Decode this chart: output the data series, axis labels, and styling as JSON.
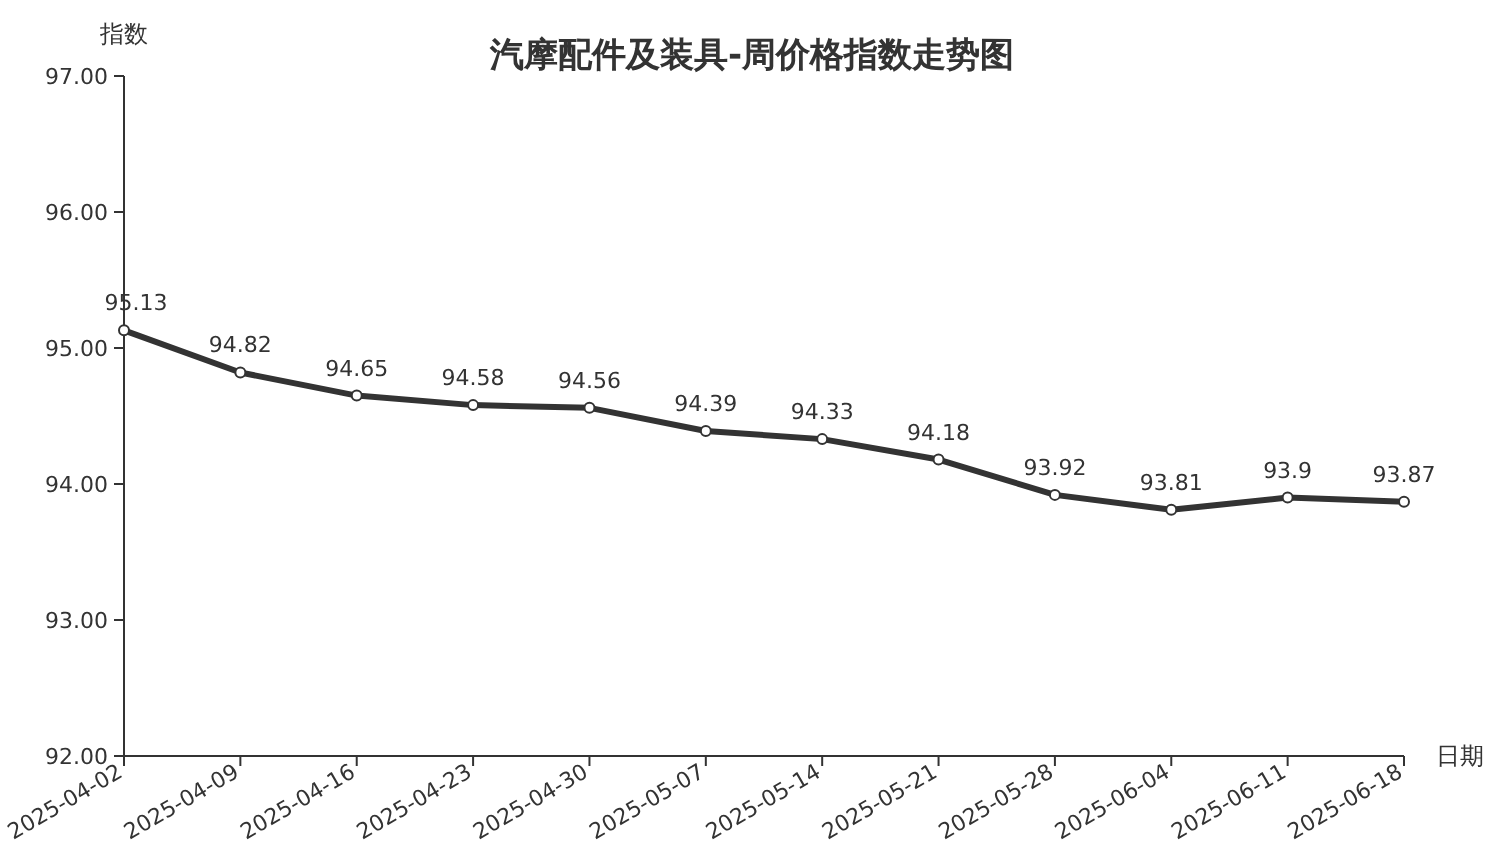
{
  "chart_data": {
    "type": "line",
    "title": "汽摩配件及装具-周价格指数走势图",
    "ylabel": "指数",
    "xlabel": "日期",
    "categories": [
      "2025-04-02",
      "2025-04-09",
      "2025-04-16",
      "2025-04-23",
      "2025-04-30",
      "2025-05-07",
      "2025-05-14",
      "2025-05-21",
      "2025-05-28",
      "2025-06-04",
      "2025-06-11",
      "2025-06-18"
    ],
    "series": [
      {
        "color": "#333333",
        "values": [
          95.13,
          94.82,
          94.65,
          94.58,
          94.56,
          94.39,
          94.33,
          94.18,
          93.92,
          93.81,
          93.9,
          93.87
        ]
      }
    ],
    "ylim": [
      92,
      97
    ],
    "yticks": [
      {
        "value": 92,
        "label": "92.00"
      },
      {
        "value": 93,
        "label": "93.00"
      },
      {
        "value": 94,
        "label": "94.00"
      },
      {
        "value": 95,
        "label": "95.00"
      },
      {
        "value": 96,
        "label": "96.00"
      },
      {
        "value": 97,
        "label": "97.00"
      }
    ],
    "data_labels": true,
    "grid": false,
    "marker": "circle",
    "line_style": "solid"
  }
}
